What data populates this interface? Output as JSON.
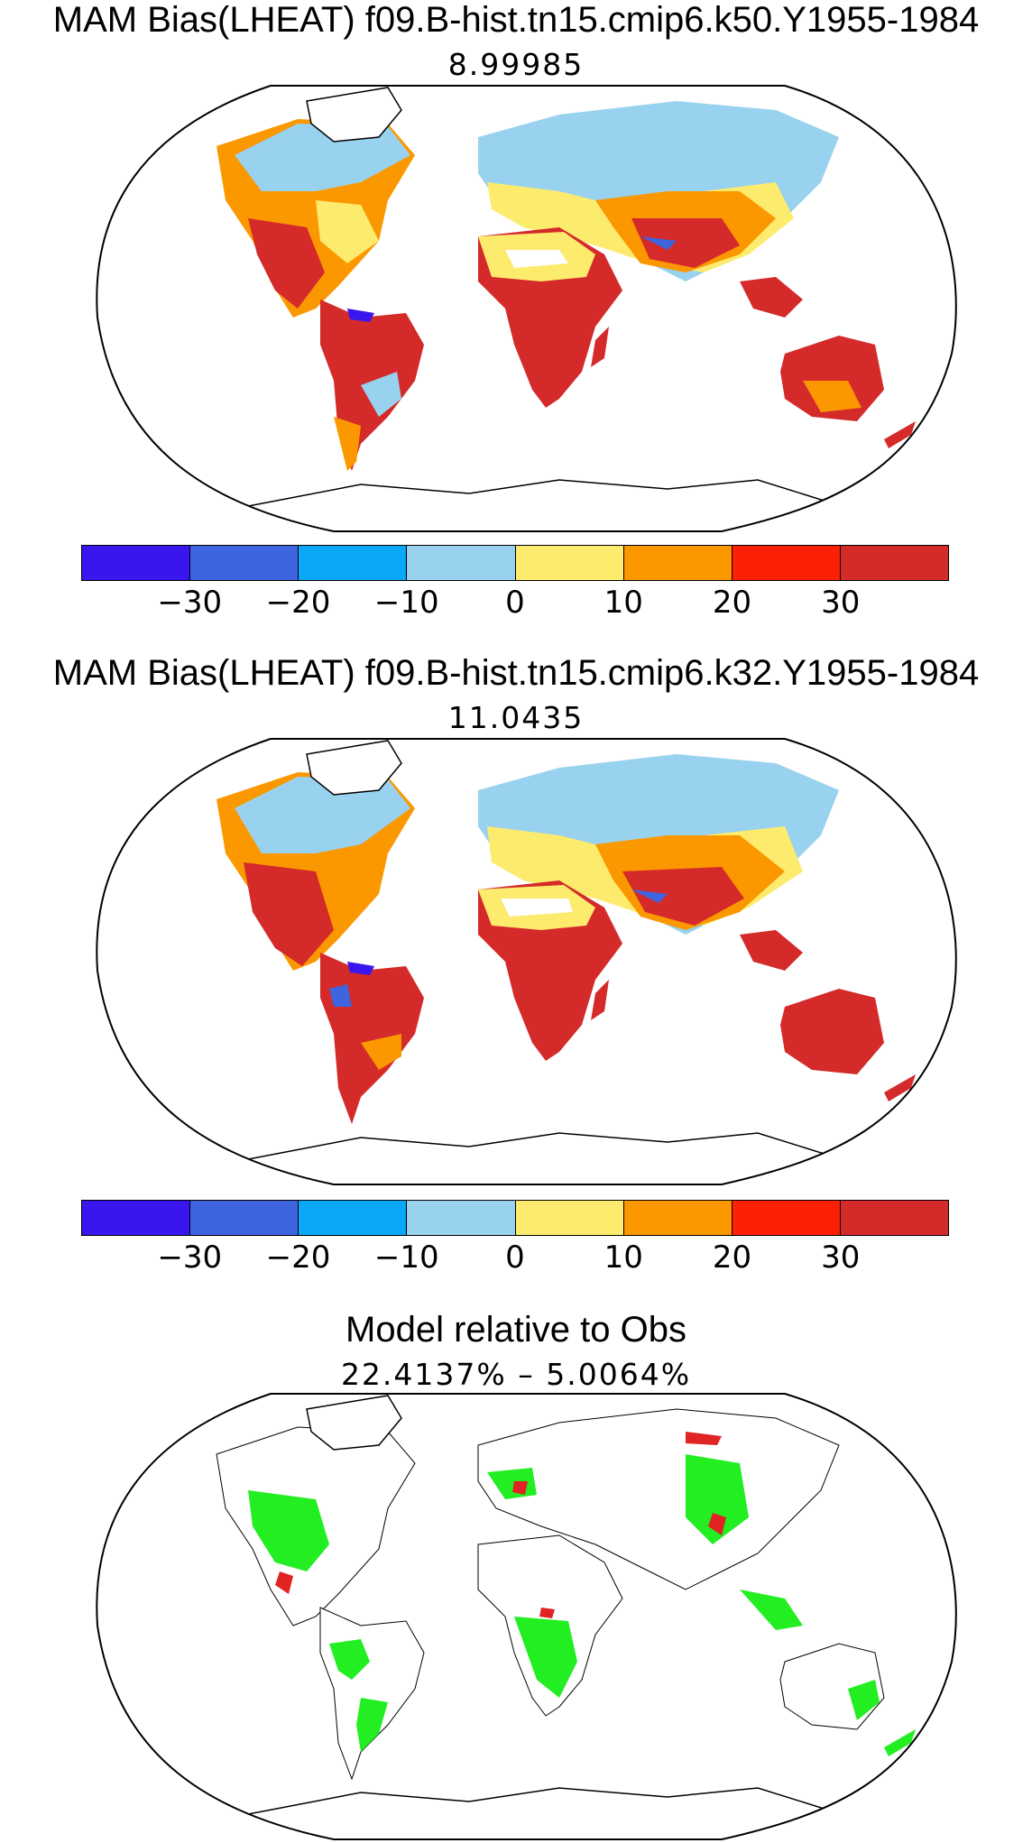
{
  "panels": [
    {
      "title": "MAM Bias(LHEAT) f09.B-hist.tn15.cmip6.k50.Y1955-1984",
      "subtitle": "8.99985"
    },
    {
      "title": "MAM Bias(LHEAT) f09.B-hist.tn15.cmip6.k32.Y1955-1984",
      "subtitle": "11.0435"
    },
    {
      "title": "Model relative to Obs",
      "subtitle": "22.4137% – 5.0064%"
    }
  ],
  "colorbar": {
    "colors": [
      "#3a16ee",
      "#3e64e0",
      "#0aa8f6",
      "#98d2ee",
      "#fdeb6e",
      "#fb9800",
      "#fb2006",
      "#d42a2a"
    ],
    "ticks": [
      "−30",
      "−20",
      "−10",
      "0",
      "10",
      "20",
      "30"
    ]
  },
  "relative_map_colors": {
    "improved": "#22ee22",
    "worse": "#e02424"
  }
}
